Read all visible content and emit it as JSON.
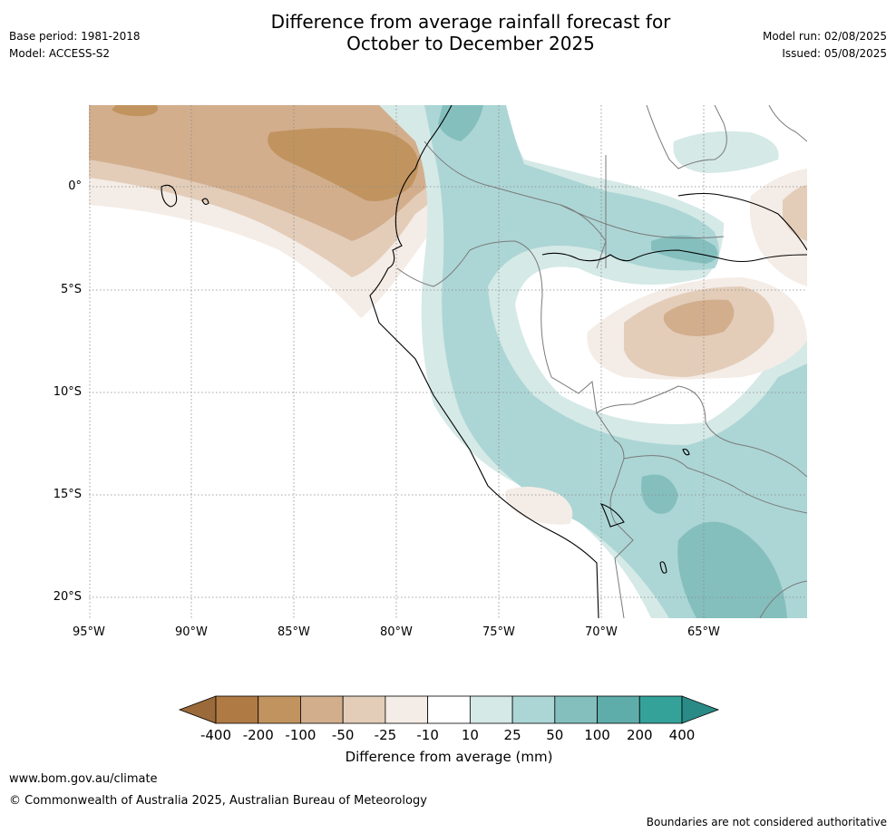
{
  "header": {
    "title_line1": "Difference from average rainfall forecast for",
    "title_line2": "October to December 2025",
    "base_period": "Base period: 1981-2018",
    "model": "Model: ACCESS-S2",
    "model_run": "Model run: 02/08/2025",
    "issued": "Issued: 05/08/2025"
  },
  "map": {
    "lon_labels": [
      "95°W",
      "90°W",
      "85°W",
      "80°W",
      "75°W",
      "70°W",
      "65°W"
    ],
    "lat_labels": [
      "0°",
      "5°S",
      "10°S",
      "15°S",
      "20°S"
    ],
    "colors": {
      "brown_dark": "#b07a45",
      "brown_mid": "#c1945f",
      "brown_light": "#d2ae8d",
      "tan": "#e3cdb9",
      "cream": "#f4ece6",
      "white": "#ffffff",
      "teal_pale": "#d5e9e7",
      "teal_light": "#acd6d5",
      "teal_mid": "#84bfbe",
      "teal_dark": "#5fadab",
      "teal_deep": "#35a29a"
    }
  },
  "colorbar": {
    "ticks": [
      "-400",
      "-200",
      "-100",
      "-50",
      "-25",
      "-10",
      "10",
      "25",
      "50",
      "100",
      "200",
      "400"
    ],
    "label": "Difference from average (mm)",
    "colors": [
      "#b07a45",
      "#c1945f",
      "#d2ae8d",
      "#e3cdb9",
      "#f4ece6",
      "#ffffff",
      "#d5e9e7",
      "#acd6d5",
      "#84bfbe",
      "#5fadab",
      "#35a29a"
    ],
    "under_color": "#9a6a3a",
    "over_color": "#2a8a85"
  },
  "footer": {
    "website": "www.bom.gov.au/climate",
    "copyright": "© Commonwealth of Australia 2025, Australian Bureau of Meteorology",
    "disclaimer": "Boundaries are not considered authoritative"
  }
}
